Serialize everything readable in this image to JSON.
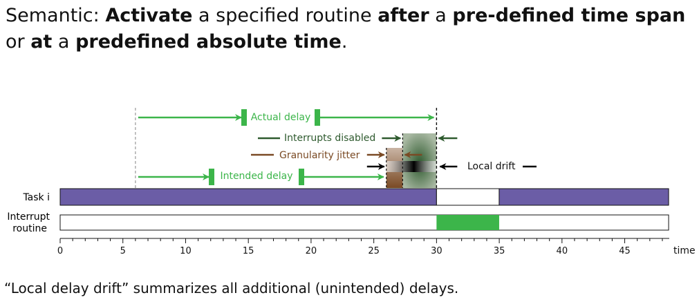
{
  "headline": {
    "prefix": "Semantic: ",
    "activate": "Activate",
    "mid1": " a specified routine ",
    "after_a": "after",
    "mid2": " a ",
    "predefined_time_span": "pre-defined time span",
    "or": " or ",
    "at": "at",
    "mid3": " a ",
    "predefined_absolute_time": "predefined absolute time",
    "end": "."
  },
  "footer": "“Local delay drift” summarizes all additional (unintended) delays.",
  "rows": {
    "task_label": "Task i",
    "interrupt_label_line1": "Interrupt",
    "interrupt_label_line2": "routine"
  },
  "annotations": {
    "actual_delay": "Actual delay",
    "interrupts_disabled": "Interrupts disabled",
    "granularity_jitter": "Granularity jitter",
    "intended_delay": "Intended delay",
    "local_drift": "Local drift"
  },
  "axis": {
    "label": "time",
    "min": 0,
    "max": 48,
    "tick_labels": [
      0,
      5,
      10,
      15,
      20,
      25,
      30,
      35,
      40,
      45
    ]
  },
  "timeline": {
    "start_time": 6,
    "granularity_start": 26,
    "interrupts_disabled_start": 27.3,
    "activation_time": 30,
    "interrupt_end": 34,
    "task_end": 48.5
  },
  "colors": {
    "task": "#6b5da6",
    "interrupt": "#3cb54a",
    "delay": "#3cb54a",
    "interrupts_disabled": "#2e5a2e",
    "granularity": "#7a4a24",
    "drift": "#000000"
  }
}
